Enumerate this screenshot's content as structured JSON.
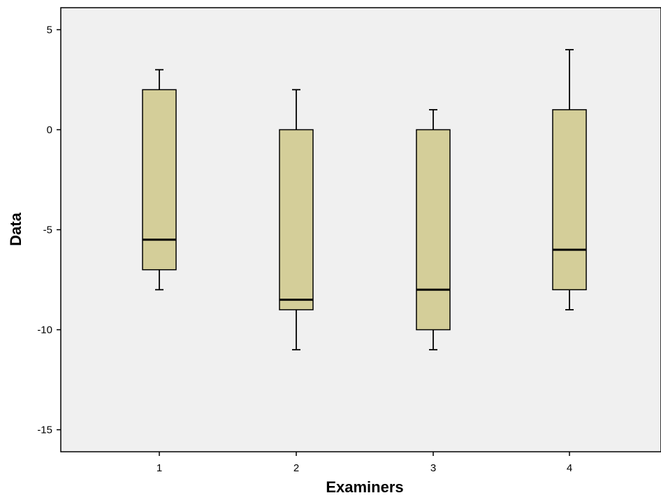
{
  "chart_data": {
    "type": "box",
    "title": "",
    "xlabel": "Examiners",
    "ylabel": "Data",
    "categories": [
      "1",
      "2",
      "3",
      "4"
    ],
    "boxes": [
      {
        "category": "1",
        "whisker_low": -8,
        "q1": -7,
        "median": -5.5,
        "q3": 2,
        "whisker_high": 3
      },
      {
        "category": "2",
        "whisker_low": -11,
        "q1": -9,
        "median": -8.5,
        "q3": 0,
        "whisker_high": 2
      },
      {
        "category": "3",
        "whisker_low": -11,
        "q1": -10,
        "median": -8,
        "q3": 0,
        "whisker_high": 1
      },
      {
        "category": "4",
        "whisker_low": -9,
        "q1": -8,
        "median": -6,
        "q3": 1,
        "whisker_high": 4
      }
    ],
    "ylim": [
      -16.1,
      6.1
    ],
    "yticks": [
      5,
      0,
      -5,
      -10,
      -15
    ],
    "ytick_labels": [
      "5",
      "0",
      "-5",
      "-10",
      "-15"
    ],
    "grid": false,
    "colors": {
      "plot_background": "#f0f0f0",
      "box_fill": "#d4ce99",
      "box_stroke": "#000000",
      "median_line": "#000000"
    }
  }
}
